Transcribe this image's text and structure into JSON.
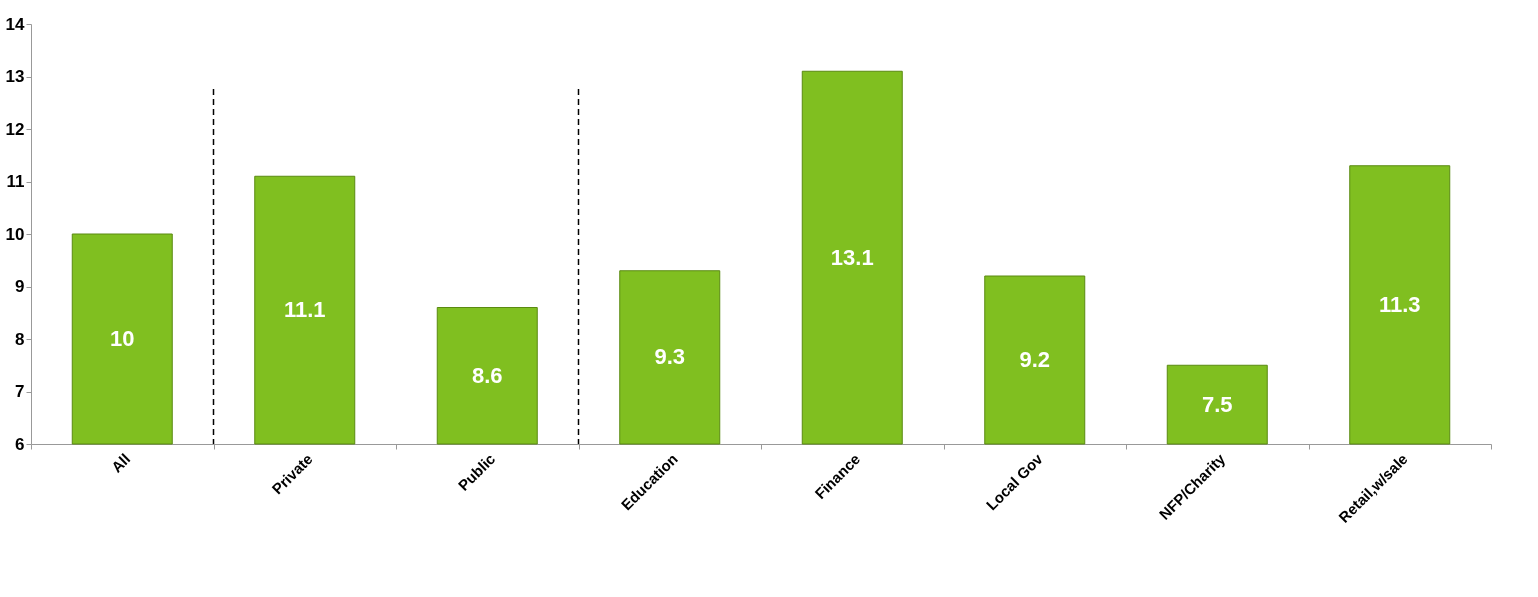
{
  "chart_data": {
    "type": "bar",
    "categories": [
      "All",
      "Private",
      "Public",
      "Education",
      "Finance",
      "Local Gov",
      "NFP/Charity",
      "Retail,w/sale"
    ],
    "values": [
      10,
      11.1,
      8.6,
      9.3,
      13.1,
      9.2,
      7.5,
      11.3
    ],
    "color": "#80bf20",
    "ylim": [
      6,
      14
    ],
    "yticks": [
      6,
      7,
      8,
      9,
      10,
      11,
      12,
      13,
      14
    ],
    "grid": false,
    "data_labels": true
  }
}
